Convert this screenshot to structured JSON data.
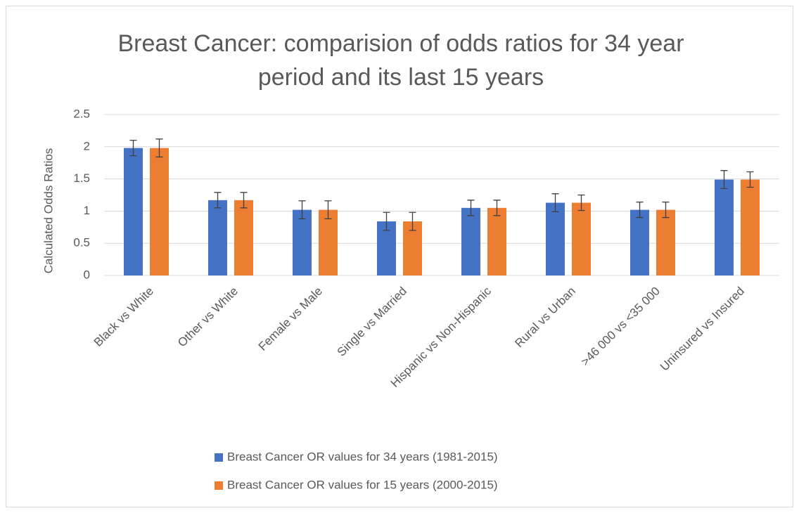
{
  "chart_data": {
    "type": "bar",
    "title": "Breast Cancer: comparision of odds ratios for 34 year period and its last 15 years",
    "y_label": "Calculated Odds Ratios",
    "categories": [
      "Black vs White",
      "Other vs White",
      "Female vs Male",
      "Single vs Married",
      "Hispanic vs Non-Hispanic",
      "Rural vs Urban",
      ">46 000 vs <35 000",
      "Uninsured vs Insured"
    ],
    "series": [
      {
        "name": "Breast Cancer OR values for 34 years (1981-2015)",
        "color": "#4472c4",
        "values": [
          1.98,
          1.17,
          1.02,
          0.84,
          1.05,
          1.13,
          1.02,
          1.49
        ],
        "errors": [
          0.12,
          0.12,
          0.14,
          0.14,
          0.12,
          0.14,
          0.12,
          0.14
        ]
      },
      {
        "name": "Breast Cancer OR values for 15 years (2000-2015)",
        "color": "#ed7d31",
        "values": [
          1.98,
          1.17,
          1.02,
          0.84,
          1.05,
          1.13,
          1.02,
          1.49
        ],
        "errors": [
          0.14,
          0.12,
          0.14,
          0.14,
          0.12,
          0.12,
          0.12,
          0.12
        ]
      }
    ],
    "ylim": [
      0,
      2.5
    ],
    "yticks": [
      0,
      0.5,
      1,
      1.5,
      2,
      2.5
    ],
    "grid": true,
    "legend": "bottom"
  }
}
